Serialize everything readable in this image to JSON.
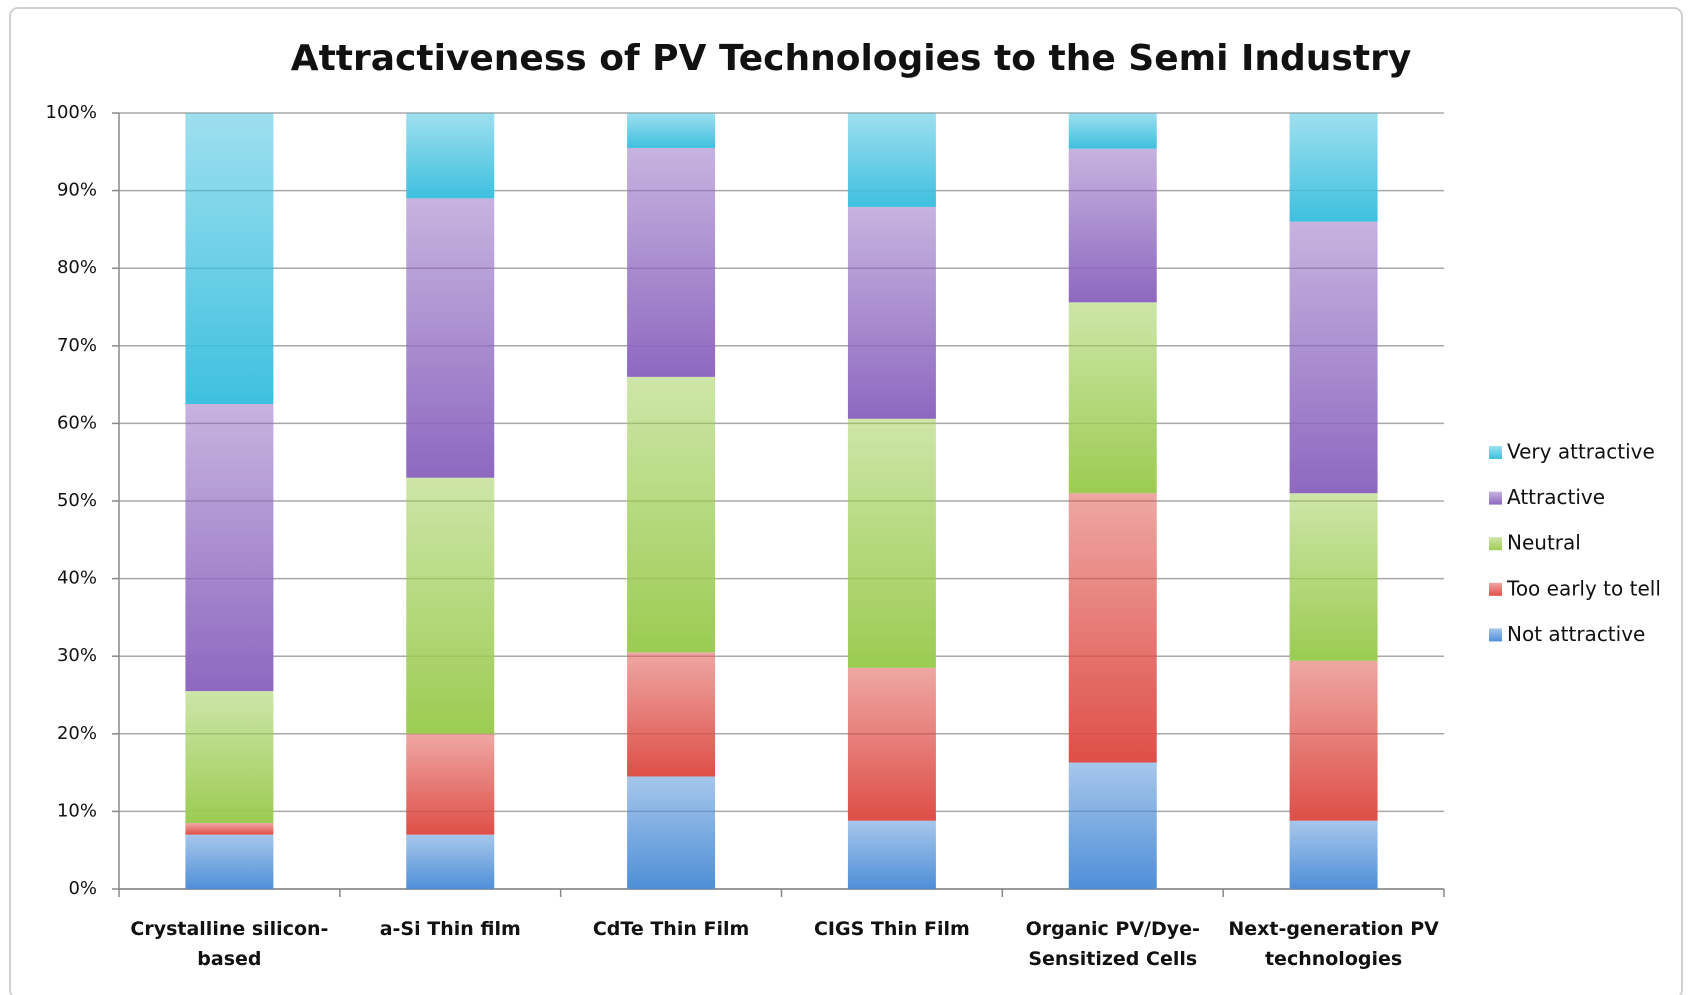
{
  "chart_data": {
    "type": "stacked_bar",
    "title": "Attractiveness of PV Technologies to the Semi Industry",
    "categories": [
      "Crystalline silicon-based",
      "a-Si Thin film",
      "CdTe  Thin Film",
      "CIGS Thin Film",
      "Organic PV/Dye-Sensitized Cells",
      "Next-generation PV technologies"
    ],
    "series": [
      {
        "name": "Not attractive",
        "color": "#4f8fd8",
        "values": [
          7,
          7,
          14.5,
          8.8,
          16.3,
          8.8
        ]
      },
      {
        "name": "Too early to tell",
        "color": "#de4f48",
        "values": [
          1.5,
          13,
          16,
          19.7,
          34.7,
          20.6
        ]
      },
      {
        "name": "Neutral",
        "color": "#9ccc52",
        "values": [
          17,
          33,
          35.5,
          32.1,
          24.6,
          21.6
        ]
      },
      {
        "name": "Attractive",
        "color": "#8e68c0",
        "values": [
          37,
          36,
          29.5,
          27.3,
          19.8,
          35
        ]
      },
      {
        "name": "Very attractive",
        "color": "#3ec0df",
        "values": [
          37.5,
          11,
          4.5,
          12.1,
          4.6,
          14
        ]
      }
    ],
    "ylim": [
      0,
      100
    ],
    "yticks": [
      {
        "value": 0,
        "label": "0%"
      },
      {
        "value": 10,
        "label": "10%"
      },
      {
        "value": 20,
        "label": "20%"
      },
      {
        "value": 30,
        "label": "30%"
      },
      {
        "value": 40,
        "label": "40%"
      },
      {
        "value": 50,
        "label": "50%"
      },
      {
        "value": 60,
        "label": "60%"
      },
      {
        "value": 70,
        "label": "70%"
      },
      {
        "value": 80,
        "label": "80%"
      },
      {
        "value": 90,
        "label": "90%"
      },
      {
        "value": 100,
        "label": "100%"
      }
    ],
    "grid": true,
    "legend": "right"
  }
}
